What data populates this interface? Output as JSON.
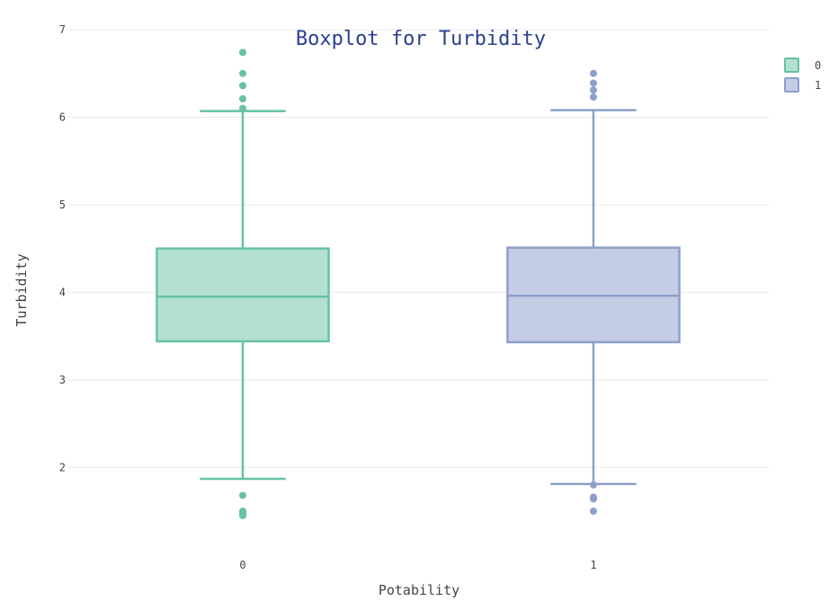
{
  "chart_data": {
    "type": "box",
    "title": "Boxplot for Turbidity",
    "xlabel": "Potability",
    "ylabel": "Turbidity",
    "ylim": [
      1.1,
      7.0
    ],
    "yticks": [
      2,
      3,
      4,
      5,
      6,
      7
    ],
    "grid": true,
    "legend_position": "top-right",
    "categories": [
      "0",
      "1"
    ],
    "series": [
      {
        "name": "0",
        "category": "0",
        "color": "#66c2a5",
        "fill": "#b3e0d2",
        "lower_whisker": 1.87,
        "q1": 3.44,
        "median": 3.95,
        "q3": 4.5,
        "upper_whisker": 6.07,
        "outliers": [
          6.74,
          6.5,
          6.36,
          6.21,
          6.1,
          1.68,
          1.5,
          1.47,
          1.45
        ]
      },
      {
        "name": "1",
        "category": "1",
        "color": "#8da0cb",
        "fill": "#c5cde6",
        "lower_whisker": 1.81,
        "q1": 3.43,
        "median": 3.96,
        "q3": 4.51,
        "upper_whisker": 6.08,
        "outliers": [
          6.5,
          6.39,
          6.31,
          6.23,
          1.8,
          1.66,
          1.64,
          1.5
        ]
      }
    ]
  }
}
